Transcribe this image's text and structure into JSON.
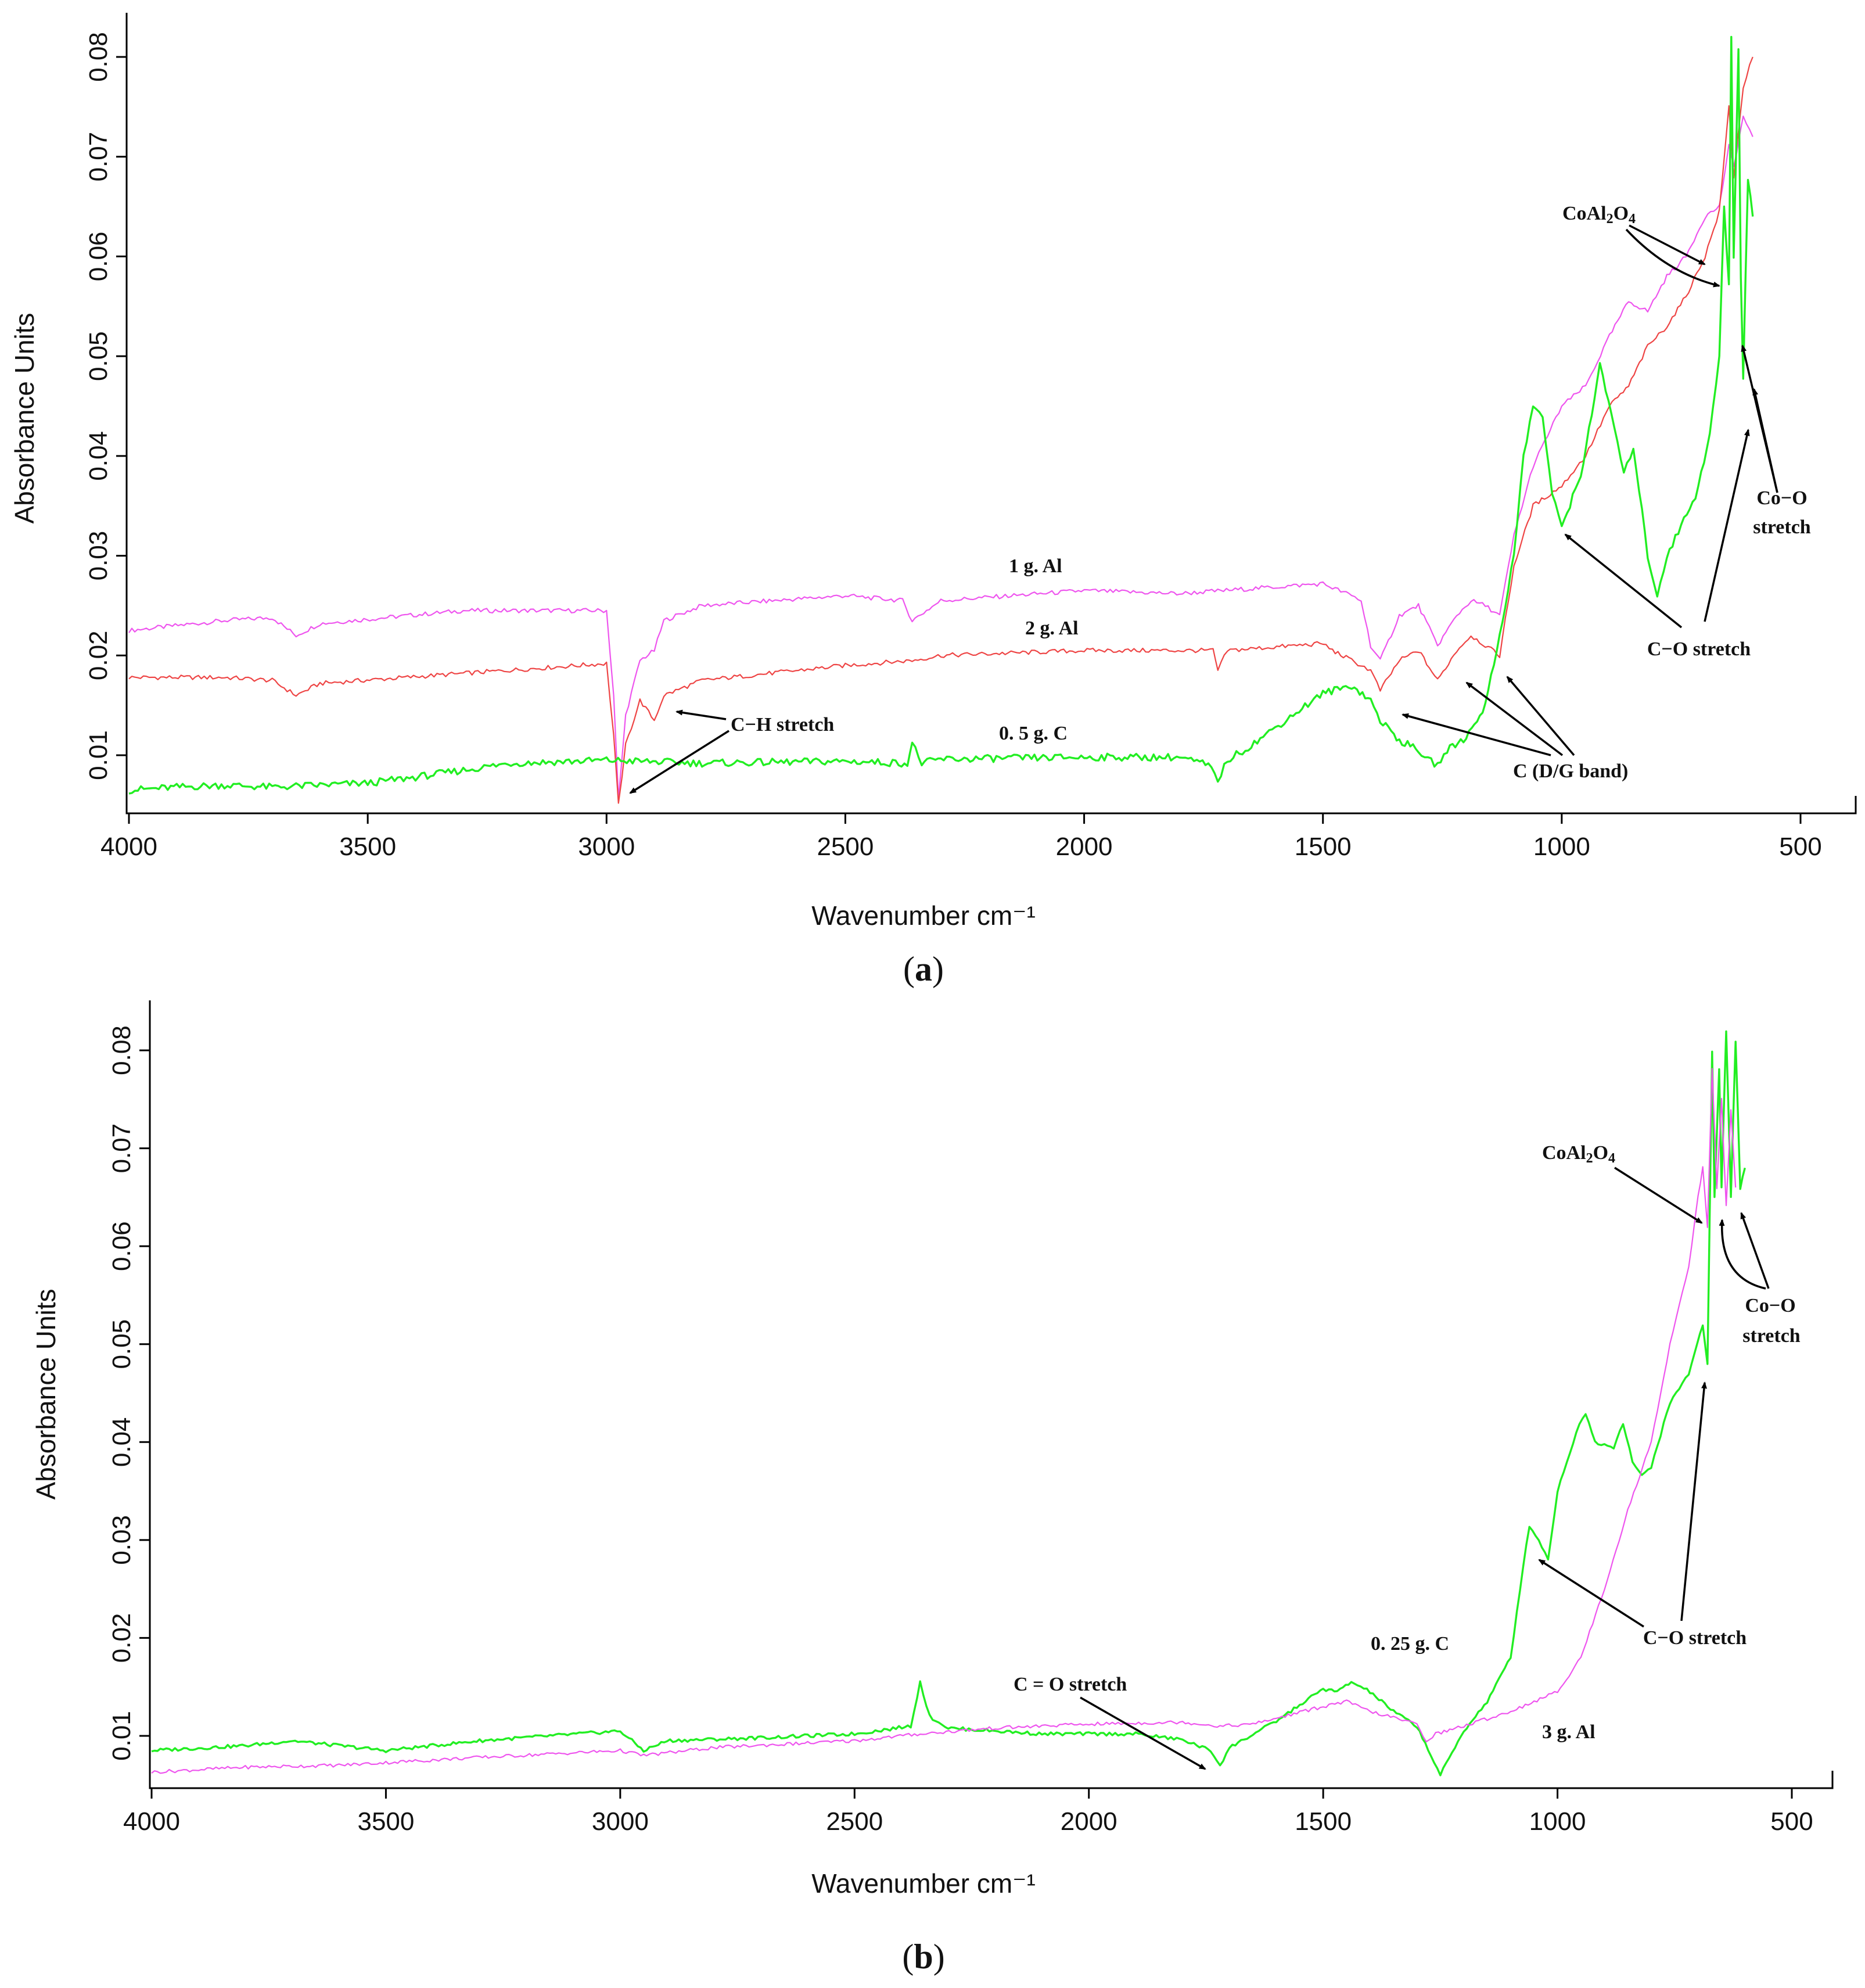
{
  "chart_data": [
    {
      "type": "line",
      "panel_label": "(a)",
      "panel_letter": "a",
      "xlabel": "Wavenumber cm⁻¹",
      "ylabel": "Absorbance Units",
      "xlim": [
        4000,
        400
      ],
      "ylim": [
        0.004,
        0.084
      ],
      "xticks": [
        4000,
        3500,
        3000,
        2500,
        2000,
        1500,
        1000,
        500
      ],
      "yticks": [
        0.01,
        0.02,
        0.03,
        0.04,
        0.05,
        0.06,
        0.07,
        0.08
      ],
      "series": [
        {
          "name": "1 g. Al",
          "color": "#ee55ee",
          "x": [
            4000,
            3800,
            3700,
            3650,
            3600,
            3300,
            3000,
            2985,
            2975,
            2960,
            2930,
            2900,
            2880,
            2800,
            2500,
            2380,
            2360,
            2330,
            2300,
            2000,
            1800,
            1500,
            1480,
            1440,
            1420,
            1400,
            1380,
            1340,
            1300,
            1260,
            1220,
            1190,
            1160,
            1130,
            1100,
            1060,
            1000,
            950,
            900,
            860,
            820,
            780,
            740,
            700,
            670,
            650,
            640,
            620,
            600
          ],
          "values": [
            0.0225,
            0.0235,
            0.0238,
            0.022,
            0.0232,
            0.0245,
            0.0245,
            0.016,
            0.0055,
            0.014,
            0.0195,
            0.0205,
            0.0235,
            0.025,
            0.026,
            0.0255,
            0.0235,
            0.0245,
            0.0255,
            0.0265,
            0.0262,
            0.0272,
            0.0268,
            0.026,
            0.0255,
            0.021,
            0.0195,
            0.024,
            0.025,
            0.021,
            0.024,
            0.0255,
            0.025,
            0.024,
            0.032,
            0.039,
            0.045,
            0.047,
            0.052,
            0.0555,
            0.0545,
            0.058,
            0.06,
            0.064,
            0.065,
            0.071,
            0.069,
            0.074,
            0.072
          ]
        },
        {
          "name": "2 g. Al",
          "color": "#ee4444",
          "x": [
            4000,
            3800,
            3700,
            3650,
            3600,
            3300,
            3000,
            2985,
            2975,
            2960,
            2930,
            2900,
            2880,
            2800,
            2500,
            2360,
            2300,
            2000,
            1730,
            1720,
            1700,
            1500,
            1480,
            1440,
            1420,
            1400,
            1380,
            1340,
            1300,
            1260,
            1220,
            1190,
            1160,
            1130,
            1100,
            1060,
            1000,
            950,
            900,
            860,
            820,
            780,
            740,
            700,
            670,
            650,
            640,
            620,
            600
          ],
          "values": [
            0.0178,
            0.0178,
            0.0175,
            0.016,
            0.0172,
            0.0182,
            0.0192,
            0.012,
            0.005,
            0.011,
            0.0155,
            0.0135,
            0.016,
            0.0175,
            0.019,
            0.0195,
            0.02,
            0.0205,
            0.0205,
            0.0185,
            0.0205,
            0.0212,
            0.0205,
            0.0195,
            0.019,
            0.0185,
            0.0165,
            0.0195,
            0.0205,
            0.0175,
            0.0205,
            0.022,
            0.021,
            0.02,
            0.029,
            0.035,
            0.037,
            0.04,
            0.045,
            0.047,
            0.051,
            0.053,
            0.056,
            0.06,
            0.0645,
            0.075,
            0.068,
            0.077,
            0.08
          ]
        },
        {
          "name": "0. 5 g.  C",
          "color": "#22ee22",
          "x": [
            4000,
            3900,
            3800,
            3700,
            3600,
            3500,
            3400,
            3300,
            3200,
            3000,
            2800,
            2500,
            2370,
            2360,
            2340,
            2300,
            2000,
            1800,
            1740,
            1720,
            1700,
            1650,
            1550,
            1500,
            1440,
            1400,
            1380,
            1340,
            1300,
            1280,
            1260,
            1240,
            1200,
            1160,
            1130,
            1100,
            1080,
            1060,
            1040,
            1020,
            1000,
            960,
            920,
            890,
            870,
            850,
            820,
            800,
            780,
            750,
            720,
            690,
            670,
            660,
            650,
            645,
            640,
            635,
            630,
            625,
            620,
            610,
            600
          ],
          "values": [
            0.0065,
            0.0068,
            0.007,
            0.0068,
            0.007,
            0.0072,
            0.0078,
            0.0085,
            0.0092,
            0.0095,
            0.0092,
            0.0094,
            0.0092,
            0.0112,
            0.0092,
            0.0096,
            0.0098,
            0.0098,
            0.009,
            0.0075,
            0.0095,
            0.011,
            0.0145,
            0.0162,
            0.017,
            0.0155,
            0.0135,
            0.0115,
            0.0105,
            0.0095,
            0.009,
            0.0105,
            0.0118,
            0.015,
            0.022,
            0.03,
            0.04,
            0.045,
            0.044,
            0.036,
            0.033,
            0.038,
            0.049,
            0.043,
            0.038,
            0.041,
            0.03,
            0.026,
            0.03,
            0.033,
            0.036,
            0.042,
            0.05,
            0.065,
            0.057,
            0.082,
            0.06,
            0.07,
            0.081,
            0.058,
            0.048,
            0.068,
            0.064
          ]
        }
      ],
      "annotations": [
        {
          "text": "CoAl",
          "sub": "2",
          "text2": "O",
          "sub2": "4"
        },
        {
          "text": "Co−O"
        },
        {
          "text": "stretch"
        },
        {
          "text": "C−O stretch"
        },
        {
          "text": "C−H stretch"
        },
        {
          "text": "C (D/G band)"
        },
        {
          "text": "1  g. Al"
        },
        {
          "text": "2  g. Al"
        },
        {
          "text": "0. 5 g.  C"
        }
      ]
    },
    {
      "type": "line",
      "panel_label": "(b)",
      "panel_letter": "b",
      "xlabel": "Wavenumber cm⁻¹",
      "ylabel": "Absorbance Units",
      "xlim": [
        4000,
        400
      ],
      "ylim": [
        0.005,
        0.085
      ],
      "xticks": [
        4000,
        3500,
        3000,
        2500,
        2000,
        1500,
        1000,
        500
      ],
      "yticks": [
        0.01,
        0.02,
        0.03,
        0.04,
        0.05,
        0.06,
        0.07,
        0.08
      ],
      "series": [
        {
          "name": "0. 25 g. C",
          "color": "#22ee22",
          "x": [
            4000,
            3800,
            3700,
            3500,
            3300,
            3000,
            2950,
            2900,
            2700,
            2500,
            2380,
            2360,
            2340,
            2300,
            2100,
            1900,
            1800,
            1740,
            1720,
            1700,
            1600,
            1500,
            1470,
            1440,
            1400,
            1350,
            1300,
            1270,
            1250,
            1200,
            1150,
            1100,
            1080,
            1060,
            1040,
            1020,
            1000,
            960,
            940,
            920,
            880,
            860,
            840,
            820,
            800,
            760,
            720,
            690,
            680,
            670,
            665,
            655,
            650,
            640,
            630,
            620,
            610,
            600
          ],
          "values": [
            0.0085,
            0.009,
            0.0095,
            0.0085,
            0.0095,
            0.0105,
            0.0085,
            0.0095,
            0.0098,
            0.0102,
            0.011,
            0.0155,
            0.012,
            0.0108,
            0.0102,
            0.0102,
            0.0096,
            0.0085,
            0.007,
            0.0088,
            0.0115,
            0.0148,
            0.0145,
            0.0155,
            0.0145,
            0.0125,
            0.011,
            0.008,
            0.006,
            0.0105,
            0.0135,
            0.018,
            0.025,
            0.0315,
            0.03,
            0.028,
            0.035,
            0.041,
            0.043,
            0.04,
            0.0395,
            0.042,
            0.038,
            0.0365,
            0.0375,
            0.044,
            0.047,
            0.052,
            0.048,
            0.08,
            0.065,
            0.078,
            0.066,
            0.082,
            0.065,
            0.081,
            0.066,
            0.068
          ]
        },
        {
          "name": "3 g. Al",
          "color": "#ee55ee",
          "x": [
            4000,
            3800,
            3600,
            3300,
            3000,
            2950,
            2800,
            2500,
            2360,
            2200,
            2000,
            1800,
            1720,
            1650,
            1500,
            1450,
            1400,
            1300,
            1280,
            1260,
            1200,
            1100,
            1000,
            950,
            900,
            850,
            800,
            760,
            720,
            700,
            690,
            680,
            670,
            660,
            650,
            640,
            630,
            620
          ],
          "values": [
            0.0063,
            0.0068,
            0.007,
            0.0078,
            0.0085,
            0.008,
            0.0088,
            0.0095,
            0.0102,
            0.0108,
            0.0112,
            0.0114,
            0.011,
            0.0112,
            0.013,
            0.0135,
            0.0125,
            0.0112,
            0.0095,
            0.0102,
            0.011,
            0.0125,
            0.0145,
            0.018,
            0.025,
            0.033,
            0.04,
            0.05,
            0.058,
            0.065,
            0.068,
            0.062,
            0.078,
            0.066,
            0.075,
            0.064,
            0.074,
            0.066
          ]
        }
      ],
      "annotations": [
        {
          "text": "CoAl",
          "sub": "2",
          "text2": "O",
          "sub2": "4"
        },
        {
          "text": "Co−O"
        },
        {
          "text": "stretch"
        },
        {
          "text": "C−O stretch"
        },
        {
          "text": "C = O stretch"
        },
        {
          "text": "0. 25 g. C"
        },
        {
          "text": "3 g. Al"
        }
      ]
    }
  ]
}
